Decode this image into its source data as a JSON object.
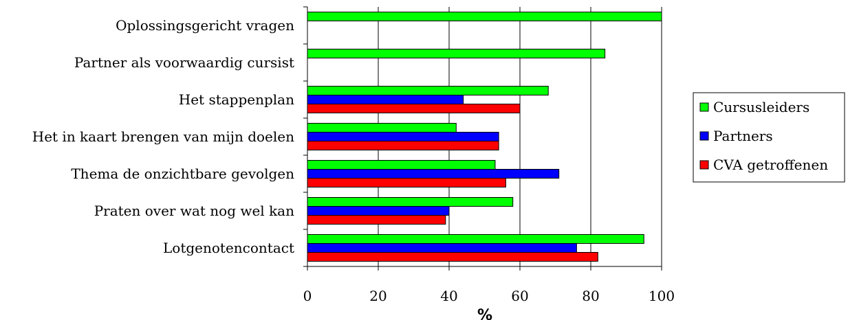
{
  "chart_data": {
    "type": "bar",
    "orientation": "horizontal",
    "categories": [
      "Oplossingsgericht vragen",
      "Partner als voorwaardig cursist",
      "Het stappenplan",
      "Het in kaart brengen van mijn doelen",
      "Thema de onzichtbare gevolgen",
      "Praten over wat nog wel kan",
      "Lotgenotencontact"
    ],
    "series": [
      {
        "name": "Cursusleiders",
        "color": "#00ff00",
        "values": [
          100,
          84,
          68,
          42,
          53,
          58,
          95
        ]
      },
      {
        "name": "Partners",
        "color": "#0000ff",
        "values": [
          null,
          null,
          44,
          54,
          71,
          40,
          76
        ]
      },
      {
        "name": "CVA getroffenen",
        "color": "#ff0000",
        "values": [
          null,
          null,
          60,
          54,
          56,
          39,
          82
        ]
      }
    ],
    "xlabel": "%",
    "ylabel": "",
    "xlim": [
      0,
      100
    ],
    "xticks": [
      "0",
      "20",
      "40",
      "60",
      "80",
      "100"
    ],
    "grid": "vertical",
    "legend": "right"
  }
}
